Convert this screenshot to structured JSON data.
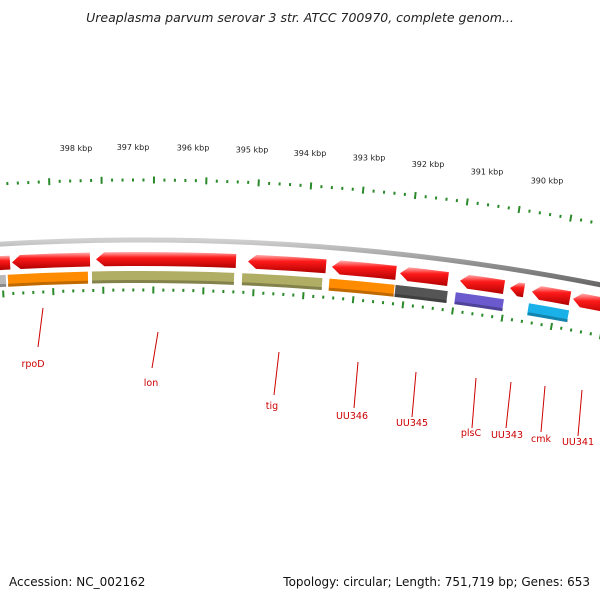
{
  "title": "Ureaplasma parvum serovar 3 str. ATCC 700970, complete genom...",
  "footer": {
    "accession": "Accession: NC_002162",
    "topology": "Topology: circular; Length: 751,719 bp; Genes: 653"
  },
  "scale_labels": [
    "398 kbp",
    "397 kbp",
    "396 kbp",
    "395 kbp",
    "394 kbp",
    "393 kbp",
    "392 kbp",
    "391 kbp",
    "390 kbp"
  ],
  "gene_labels": [
    "rpoD",
    "lon",
    "tig",
    "UU346",
    "UU345",
    "plsC",
    "UU343",
    "cmk",
    "UU341"
  ],
  "colors": {
    "backbone": "#8f8f8f",
    "tick": "#2a8a2a",
    "forward_gene": "#ff1a1a",
    "label": "#cc0000",
    "rpoD": "#ff8c00",
    "lon": "#b0ae64",
    "tig": "#b0ae64",
    "UU346": "#ff8c00",
    "UU345": "#555555",
    "plsC": "#6a5acd",
    "cmk": "#1ab0e8"
  }
}
